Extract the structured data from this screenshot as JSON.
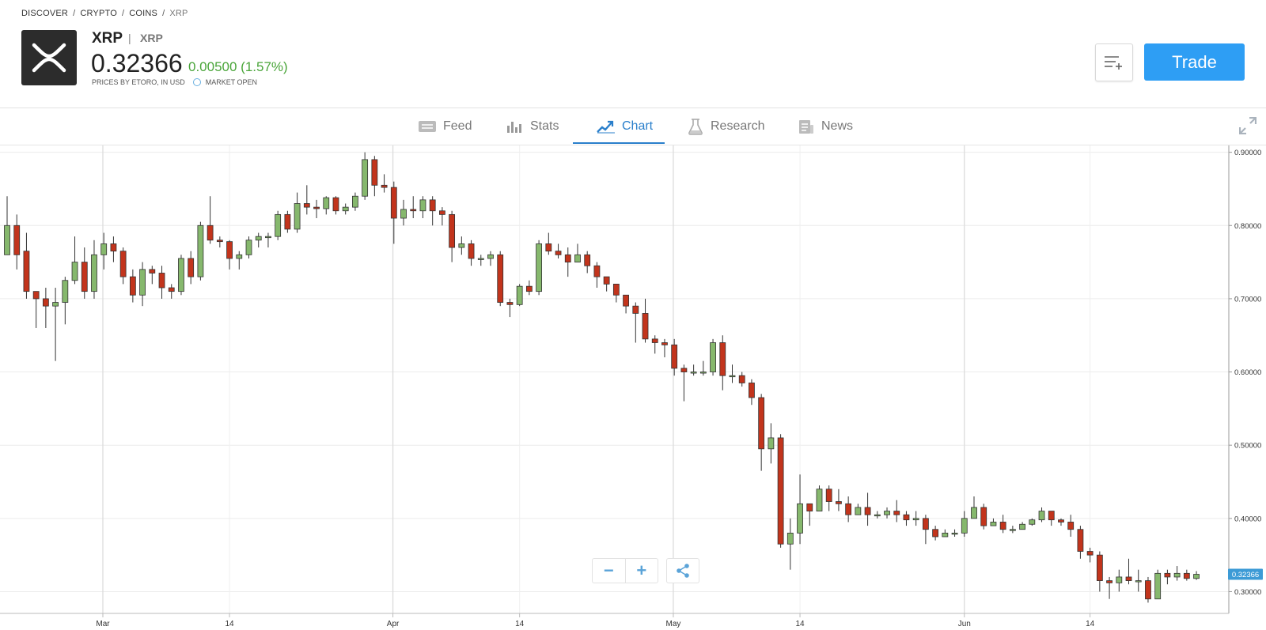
{
  "breadcrumb": [
    "DISCOVER",
    "CRYPTO",
    "COINS",
    "XRP"
  ],
  "instrument": {
    "symbol": "XRP",
    "name": "XRP",
    "price": "0.32366",
    "change": "0.00500 (1.57%)",
    "change_color": "#4aa53a",
    "prices_note": "PRICES BY ETORO, IN USD",
    "market_status": "MARKET OPEN"
  },
  "actions": {
    "watchlist_icon": "add-to-list-icon",
    "trade_label": "Trade"
  },
  "tabs": [
    {
      "label": "Feed",
      "icon": "feed-icon",
      "active": false
    },
    {
      "label": "Stats",
      "icon": "stats-icon",
      "active": false
    },
    {
      "label": "Chart",
      "icon": "chart-icon",
      "active": true
    },
    {
      "label": "Research",
      "icon": "research-icon",
      "active": false
    },
    {
      "label": "News",
      "icon": "news-icon",
      "active": false
    }
  ],
  "chart_controls": {
    "zoom_out": "−",
    "zoom_in": "+",
    "share_icon": "share-icon"
  },
  "colors": {
    "up": "#86b86d",
    "down": "#c2341c",
    "accent": "#2e9ef4",
    "last_price_tag": "#3d9bd6"
  },
  "chart_data": {
    "type": "candlestick",
    "y_ticks": [
      "0.30000",
      "0.40000",
      "0.50000",
      "0.60000",
      "0.70000",
      "0.80000",
      "0.90000"
    ],
    "ylim": [
      0.28,
      0.905
    ],
    "x_ticks": [
      {
        "label": "Mar",
        "index": 9.9
      },
      {
        "label": "14",
        "index": 23
      },
      {
        "label": "Apr",
        "index": 39.9
      },
      {
        "label": "14",
        "index": 53
      },
      {
        "label": "May",
        "index": 68.9
      },
      {
        "label": "14",
        "index": 82
      },
      {
        "label": "Jun",
        "index": 99
      },
      {
        "label": "14",
        "index": 112
      }
    ],
    "last_price": "0.32366",
    "candles": [
      [
        0.76,
        0.8,
        0.84,
        0.76
      ],
      [
        0.8,
        0.76,
        0.815,
        0.74
      ],
      [
        0.765,
        0.71,
        0.79,
        0.7
      ],
      [
        0.71,
        0.7,
        0.71,
        0.66
      ],
      [
        0.7,
        0.69,
        0.715,
        0.66
      ],
      [
        0.69,
        0.695,
        0.715,
        0.615
      ],
      [
        0.695,
        0.725,
        0.73,
        0.665
      ],
      [
        0.725,
        0.75,
        0.785,
        0.72
      ],
      [
        0.75,
        0.71,
        0.77,
        0.7
      ],
      [
        0.71,
        0.76,
        0.78,
        0.7
      ],
      [
        0.76,
        0.775,
        0.79,
        0.74
      ],
      [
        0.775,
        0.765,
        0.785,
        0.75
      ],
      [
        0.765,
        0.73,
        0.77,
        0.72
      ],
      [
        0.73,
        0.705,
        0.74,
        0.695
      ],
      [
        0.705,
        0.74,
        0.75,
        0.69
      ],
      [
        0.74,
        0.735,
        0.745,
        0.72
      ],
      [
        0.735,
        0.715,
        0.745,
        0.7
      ],
      [
        0.715,
        0.71,
        0.72,
        0.7
      ],
      [
        0.71,
        0.755,
        0.76,
        0.705
      ],
      [
        0.755,
        0.73,
        0.765,
        0.72
      ],
      [
        0.73,
        0.8,
        0.805,
        0.725
      ],
      [
        0.8,
        0.78,
        0.84,
        0.775
      ],
      [
        0.78,
        0.778,
        0.785,
        0.77
      ],
      [
        0.778,
        0.755,
        0.78,
        0.74
      ],
      [
        0.755,
        0.76,
        0.765,
        0.74
      ],
      [
        0.76,
        0.78,
        0.785,
        0.755
      ],
      [
        0.78,
        0.785,
        0.79,
        0.77
      ],
      [
        0.785,
        0.785,
        0.79,
        0.77
      ],
      [
        0.785,
        0.815,
        0.82,
        0.78
      ],
      [
        0.815,
        0.795,
        0.82,
        0.79
      ],
      [
        0.795,
        0.83,
        0.845,
        0.79
      ],
      [
        0.83,
        0.825,
        0.855,
        0.815
      ],
      [
        0.825,
        0.823,
        0.835,
        0.81
      ],
      [
        0.823,
        0.838,
        0.84,
        0.815
      ],
      [
        0.838,
        0.82,
        0.84,
        0.815
      ],
      [
        0.82,
        0.825,
        0.83,
        0.815
      ],
      [
        0.825,
        0.84,
        0.845,
        0.82
      ],
      [
        0.84,
        0.89,
        0.9,
        0.835
      ],
      [
        0.89,
        0.855,
        0.895,
        0.84
      ],
      [
        0.855,
        0.852,
        0.87,
        0.845
      ],
      [
        0.852,
        0.81,
        0.86,
        0.775
      ],
      [
        0.81,
        0.822,
        0.835,
        0.8
      ],
      [
        0.822,
        0.82,
        0.84,
        0.81
      ],
      [
        0.82,
        0.835,
        0.84,
        0.81
      ],
      [
        0.835,
        0.82,
        0.84,
        0.8
      ],
      [
        0.82,
        0.815,
        0.825,
        0.8
      ],
      [
        0.815,
        0.77,
        0.82,
        0.75
      ],
      [
        0.77,
        0.775,
        0.785,
        0.76
      ],
      [
        0.775,
        0.755,
        0.78,
        0.745
      ],
      [
        0.755,
        0.755,
        0.76,
        0.745
      ],
      [
        0.755,
        0.76,
        0.765,
        0.745
      ],
      [
        0.76,
        0.695,
        0.765,
        0.69
      ],
      [
        0.695,
        0.692,
        0.7,
        0.675
      ],
      [
        0.692,
        0.717,
        0.72,
        0.69
      ],
      [
        0.717,
        0.71,
        0.725,
        0.705
      ],
      [
        0.71,
        0.775,
        0.78,
        0.705
      ],
      [
        0.775,
        0.765,
        0.79,
        0.76
      ],
      [
        0.765,
        0.76,
        0.775,
        0.755
      ],
      [
        0.76,
        0.75,
        0.77,
        0.73
      ],
      [
        0.75,
        0.76,
        0.775,
        0.75
      ],
      [
        0.76,
        0.745,
        0.765,
        0.735
      ],
      [
        0.745,
        0.73,
        0.75,
        0.715
      ],
      [
        0.73,
        0.72,
        0.73,
        0.71
      ],
      [
        0.72,
        0.705,
        0.72,
        0.695
      ],
      [
        0.705,
        0.69,
        0.705,
        0.68
      ],
      [
        0.69,
        0.68,
        0.695,
        0.64
      ],
      [
        0.68,
        0.645,
        0.7,
        0.64
      ],
      [
        0.645,
        0.64,
        0.65,
        0.625
      ],
      [
        0.64,
        0.637,
        0.645,
        0.62
      ],
      [
        0.637,
        0.605,
        0.645,
        0.595
      ],
      [
        0.605,
        0.6,
        0.61,
        0.56
      ],
      [
        0.6,
        0.6,
        0.61,
        0.595
      ],
      [
        0.6,
        0.6,
        0.615,
        0.595
      ],
      [
        0.6,
        0.64,
        0.645,
        0.595
      ],
      [
        0.64,
        0.595,
        0.65,
        0.575
      ],
      [
        0.595,
        0.595,
        0.61,
        0.585
      ],
      [
        0.595,
        0.585,
        0.6,
        0.58
      ],
      [
        0.585,
        0.565,
        0.59,
        0.555
      ],
      [
        0.565,
        0.495,
        0.57,
        0.465
      ],
      [
        0.495,
        0.51,
        0.53,
        0.475
      ],
      [
        0.51,
        0.365,
        0.515,
        0.36
      ],
      [
        0.365,
        0.38,
        0.4,
        0.33
      ],
      [
        0.38,
        0.42,
        0.46,
        0.365
      ],
      [
        0.42,
        0.41,
        0.42,
        0.39
      ],
      [
        0.41,
        0.44,
        0.445,
        0.41
      ],
      [
        0.44,
        0.423,
        0.445,
        0.41
      ],
      [
        0.423,
        0.42,
        0.44,
        0.41
      ],
      [
        0.42,
        0.405,
        0.43,
        0.395
      ],
      [
        0.405,
        0.415,
        0.42,
        0.405
      ],
      [
        0.415,
        0.405,
        0.435,
        0.39
      ],
      [
        0.405,
        0.405,
        0.41,
        0.4
      ],
      [
        0.405,
        0.41,
        0.415,
        0.4
      ],
      [
        0.41,
        0.405,
        0.425,
        0.395
      ],
      [
        0.405,
        0.398,
        0.41,
        0.39
      ],
      [
        0.398,
        0.4,
        0.41,
        0.39
      ],
      [
        0.4,
        0.385,
        0.405,
        0.365
      ],
      [
        0.385,
        0.375,
        0.39,
        0.37
      ],
      [
        0.375,
        0.38,
        0.385,
        0.375
      ],
      [
        0.38,
        0.38,
        0.385,
        0.375
      ],
      [
        0.38,
        0.4,
        0.41,
        0.375
      ],
      [
        0.4,
        0.415,
        0.43,
        0.4
      ],
      [
        0.415,
        0.39,
        0.42,
        0.385
      ],
      [
        0.39,
        0.395,
        0.4,
        0.39
      ],
      [
        0.395,
        0.385,
        0.405,
        0.38
      ],
      [
        0.385,
        0.385,
        0.39,
        0.38
      ],
      [
        0.385,
        0.392,
        0.395,
        0.385
      ],
      [
        0.392,
        0.398,
        0.4,
        0.39
      ],
      [
        0.398,
        0.41,
        0.415,
        0.395
      ],
      [
        0.41,
        0.398,
        0.41,
        0.39
      ],
      [
        0.398,
        0.395,
        0.4,
        0.39
      ],
      [
        0.395,
        0.385,
        0.405,
        0.375
      ],
      [
        0.385,
        0.355,
        0.39,
        0.345
      ],
      [
        0.355,
        0.35,
        0.36,
        0.34
      ],
      [
        0.35,
        0.315,
        0.355,
        0.3
      ],
      [
        0.315,
        0.312,
        0.32,
        0.29
      ],
      [
        0.312,
        0.32,
        0.33,
        0.3
      ],
      [
        0.32,
        0.315,
        0.345,
        0.31
      ],
      [
        0.315,
        0.315,
        0.33,
        0.3
      ],
      [
        0.315,
        0.29,
        0.32,
        0.285
      ],
      [
        0.29,
        0.325,
        0.33,
        0.29
      ],
      [
        0.325,
        0.32,
        0.33,
        0.31
      ],
      [
        0.32,
        0.325,
        0.335,
        0.315
      ],
      [
        0.325,
        0.318,
        0.33,
        0.315
      ],
      [
        0.318,
        0.3237,
        0.328,
        0.316
      ]
    ]
  }
}
